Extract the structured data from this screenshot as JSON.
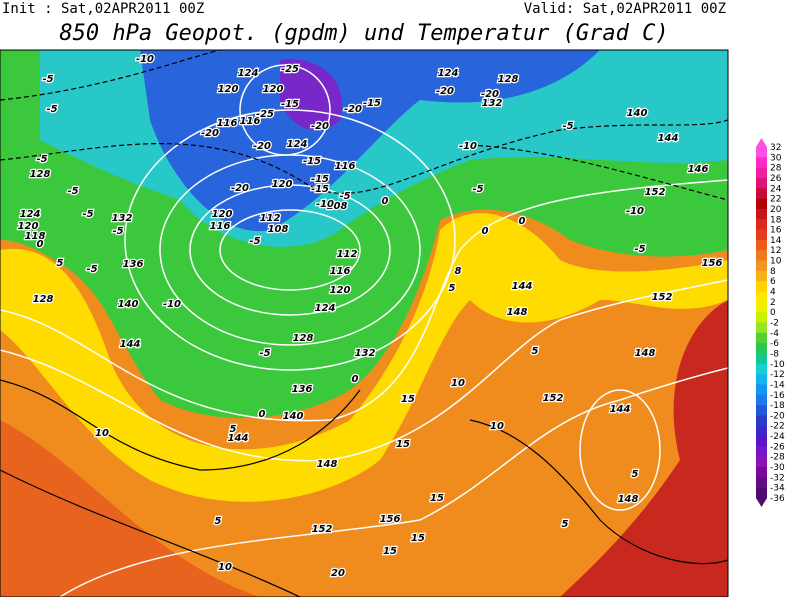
{
  "header": {
    "init": "Init : Sat,02APR2011 00Z",
    "valid": "Valid: Sat,02APR2011 00Z",
    "title": "850 hPa Geopot. (gpdm) und Temperatur (Grad C)"
  },
  "colorbar": {
    "labels": [
      32,
      30,
      28,
      26,
      24,
      22,
      20,
      18,
      16,
      14,
      12,
      10,
      8,
      6,
      4,
      2,
      0,
      -2,
      -4,
      -6,
      -8,
      -10,
      -12,
      -14,
      -16,
      -18,
      -20,
      -22,
      -24,
      -26,
      -28,
      -30,
      -32,
      -34,
      -36
    ],
    "colors": [
      "#ff50e6",
      "#ff28c8",
      "#f01ea0",
      "#dc1478",
      "#c80a3c",
      "#b40000",
      "#c81414",
      "#dc281e",
      "#e63c1e",
      "#f05a1e",
      "#f0781e",
      "#f0961e",
      "#f5b414",
      "#ffd200",
      "#ffe600",
      "#f0f000",
      "#c8f000",
      "#96e628",
      "#50d232",
      "#28c850",
      "#14c896",
      "#14d2d2",
      "#14b4f0",
      "#1496f0",
      "#1e78f0",
      "#1e5adc",
      "#283cc8",
      "#3c28c8",
      "#5a14c8",
      "#7814c8",
      "#8c14b4",
      "#780a96",
      "#640a82",
      "#500a6e"
    ]
  },
  "map_labels": [
    "-10",
    "-5",
    "-5",
    "-5",
    "128",
    "-5",
    "124",
    "-5",
    "120",
    "132",
    "-5",
    "118",
    "0",
    "5",
    "-5",
    "136",
    "128",
    "140",
    "-10",
    "144",
    "10",
    "-5",
    "128",
    "124",
    "120",
    "116",
    "112",
    "108",
    "112",
    "108",
    "-5",
    "120",
    "116",
    "120",
    "-20",
    "-15",
    "-15",
    "-10",
    "-5",
    "116",
    "-15",
    "124",
    "-20",
    "116",
    "-20",
    "120",
    "-25",
    "132",
    "0",
    "136",
    "140",
    "0",
    "5",
    "144",
    "148",
    "5",
    "152",
    "10",
    "156",
    "15",
    "15",
    "20",
    "15",
    "15",
    "15",
    "10",
    "10",
    "5",
    "152",
    "144",
    "5",
    "148",
    "5",
    "148",
    "152",
    "156",
    "-5",
    "-10",
    "152",
    "146",
    "144",
    "140",
    "-5",
    "128",
    "124",
    "132",
    "-20",
    "-20",
    "-15",
    "-10",
    "-5",
    "0",
    "0",
    "5",
    "144",
    "148",
    "0",
    "124",
    "120",
    "116",
    "-20",
    "-20",
    "-25",
    "-15",
    "8"
  ]
}
